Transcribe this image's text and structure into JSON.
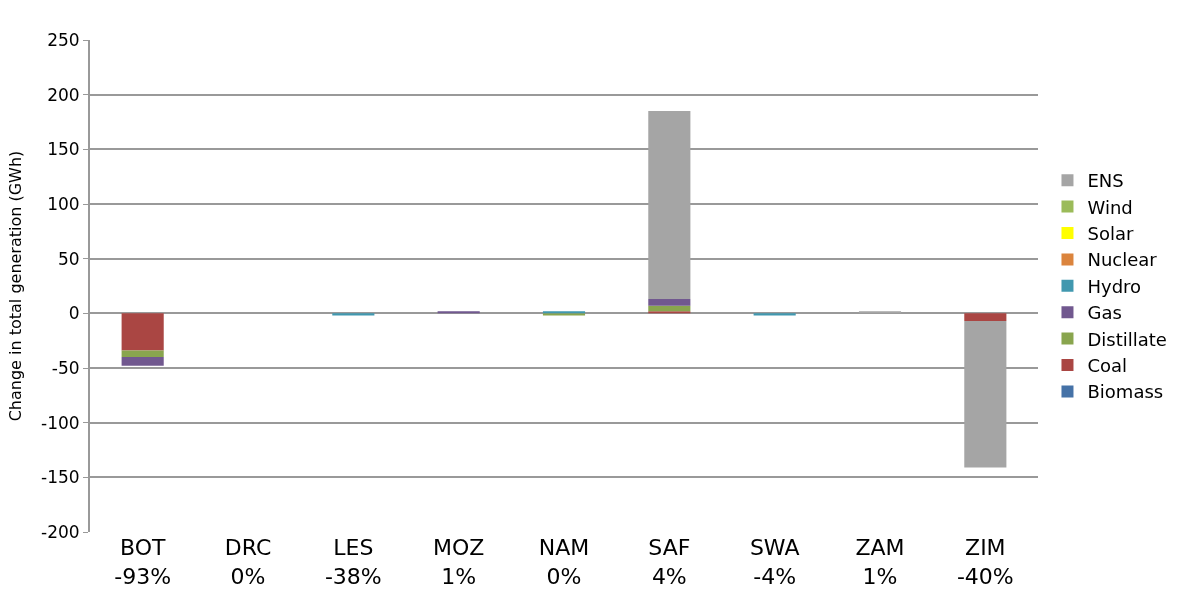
{
  "chart_data": {
    "type": "bar",
    "stacked": true,
    "ylabel": "Change in total generation (GWh)",
    "categories": [
      "BOT\n-93%",
      "DRC\n0%",
      "LES\n-38%",
      "MOZ\n1%",
      "NAM\n0%",
      "SAF\n4%",
      "SWA\n-4%",
      "ZAM\n1%",
      "ZIM\n-40%"
    ],
    "ylim": [
      -200,
      250
    ],
    "yticks": [
      -200,
      -150,
      -100,
      -50,
      0,
      50,
      100,
      150,
      200,
      250
    ],
    "grid": "y",
    "legend": "right",
    "series": [
      {
        "name": "Biomass",
        "color": "#4572a7",
        "values": [
          null,
          null,
          null,
          null,
          null,
          null,
          null,
          null,
          null
        ]
      },
      {
        "name": "Coal",
        "color": "#aa4643",
        "values": [
          -34,
          null,
          null,
          null,
          null,
          2,
          null,
          null,
          -7
        ]
      },
      {
        "name": "Distillate",
        "color": "#89a54e",
        "values": [
          -6,
          null,
          null,
          null,
          -2,
          5,
          null,
          null,
          null
        ]
      },
      {
        "name": "Gas",
        "color": "#71588f",
        "values": [
          -8,
          null,
          null,
          2,
          null,
          6,
          null,
          null,
          null
        ]
      },
      {
        "name": "Hydro",
        "color": "#4198af",
        "values": [
          null,
          null,
          -2,
          null,
          2,
          null,
          -2,
          null,
          null
        ]
      },
      {
        "name": "Nuclear",
        "color": "#db843d",
        "values": [
          null,
          null,
          null,
          null,
          null,
          null,
          null,
          null,
          null
        ]
      },
      {
        "name": "Solar",
        "color": "#ffff00",
        "values": [
          null,
          null,
          null,
          null,
          null,
          null,
          null,
          null,
          null
        ]
      },
      {
        "name": "Wind",
        "color": "#9bbb59",
        "values": [
          null,
          null,
          null,
          null,
          null,
          null,
          null,
          null,
          null
        ]
      },
      {
        "name": "ENS",
        "color": "#a5a5a5",
        "values": [
          null,
          null,
          null,
          null,
          null,
          172,
          null,
          2,
          -134
        ]
      }
    ]
  }
}
